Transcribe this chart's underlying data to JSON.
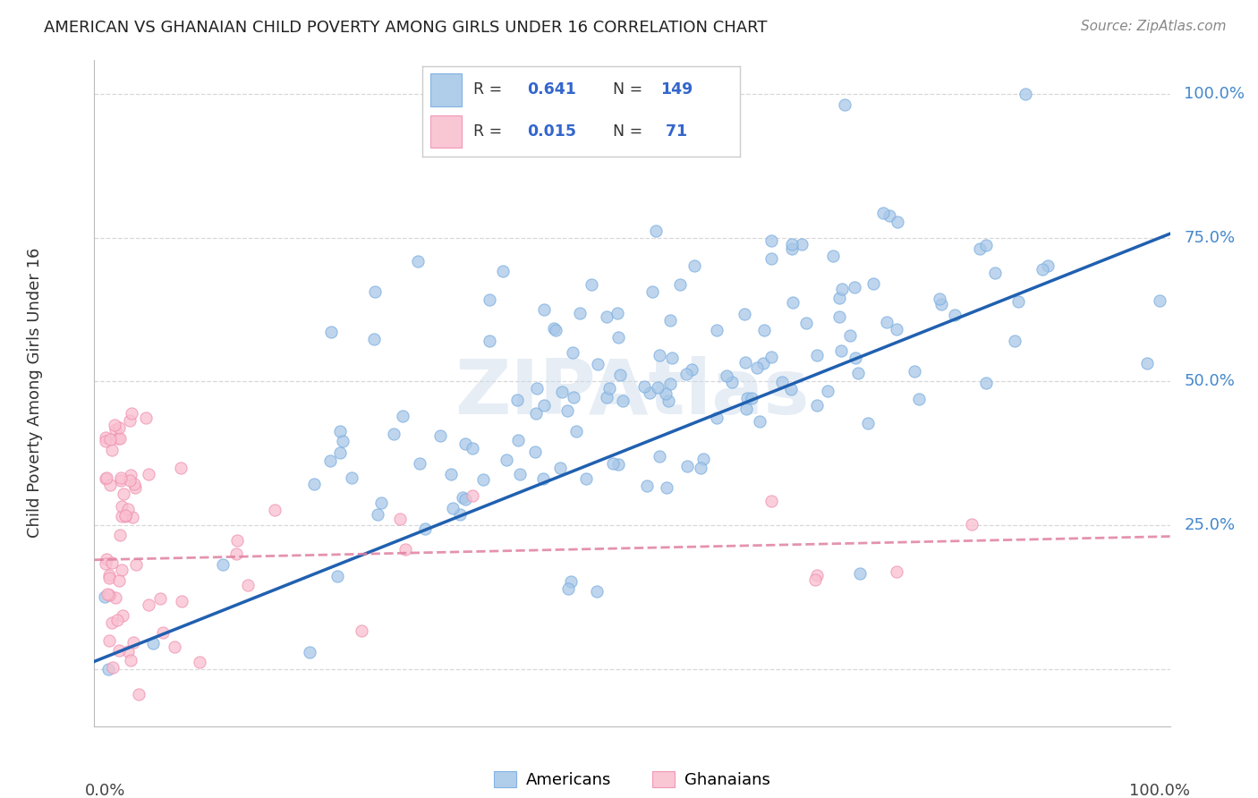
{
  "title": "AMERICAN VS GHANAIAN CHILD POVERTY AMONG GIRLS UNDER 16 CORRELATION CHART",
  "source": "Source: ZipAtlas.com",
  "ylabel": "Child Poverty Among Girls Under 16",
  "american_color": "#a8c8e8",
  "american_edge_color": "#7aade0",
  "ghanaian_color": "#f9c0d0",
  "ghanaian_edge_color": "#f090b0",
  "american_line_color": "#2060b0",
  "ghanaian_line_color": "#e080a0",
  "grid_color": "#d8d8d8",
  "ytick_values": [
    0.0,
    0.25,
    0.5,
    0.75,
    1.0
  ],
  "ytick_labels": [
    "",
    "25.0%",
    "50.0%",
    "75.0%",
    "100.0%"
  ],
  "ytick_color": "#4488cc",
  "watermark_text": "ZIPAtlas",
  "legend_R_am": "0.641",
  "legend_N_am": "149",
  "legend_R_gh": "0.015",
  "legend_N_gh": " 71",
  "legend_color": "#3366cc",
  "figsize": [
    14.06,
    8.92
  ],
  "dpi": 100
}
